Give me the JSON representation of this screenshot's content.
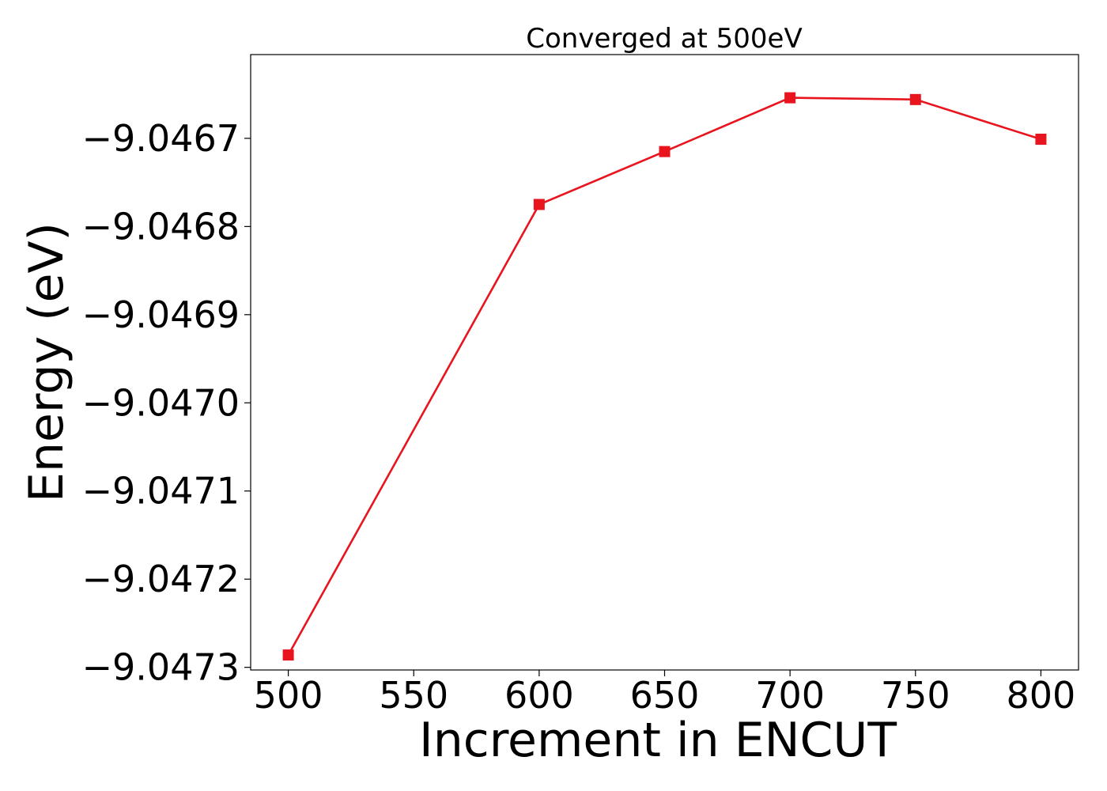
{
  "chart_data": {
    "type": "line",
    "title": "Converged at 500eV",
    "xlabel": "Increment in ENCUT",
    "ylabel": "Energy (eV)",
    "x": [
      500,
      600,
      650,
      700,
      750,
      800
    ],
    "series": [
      {
        "values": [
          -9.047286,
          -9.046775,
          -9.046715,
          -9.046654,
          -9.046656,
          -9.046701
        ],
        "color": "#e8141e",
        "marker": "square"
      }
    ],
    "xticks": [
      500,
      550,
      600,
      650,
      700,
      750,
      800
    ],
    "xtick_labels": [
      "500",
      "550",
      "600",
      "650",
      "700",
      "750",
      "800"
    ],
    "yticks": [
      -9.0473,
      -9.0472,
      -9.0471,
      -9.047,
      -9.0469,
      -9.0468,
      -9.0467
    ],
    "ytick_labels": [
      "−9.0473",
      "−9.0472",
      "−9.0471",
      "−9.0470",
      "−9.0469",
      "−9.0468",
      "−9.0467"
    ],
    "xlim": [
      485,
      815
    ],
    "ylim": [
      -9.047303,
      -9.046605
    ],
    "grid": false,
    "legend": false
  }
}
